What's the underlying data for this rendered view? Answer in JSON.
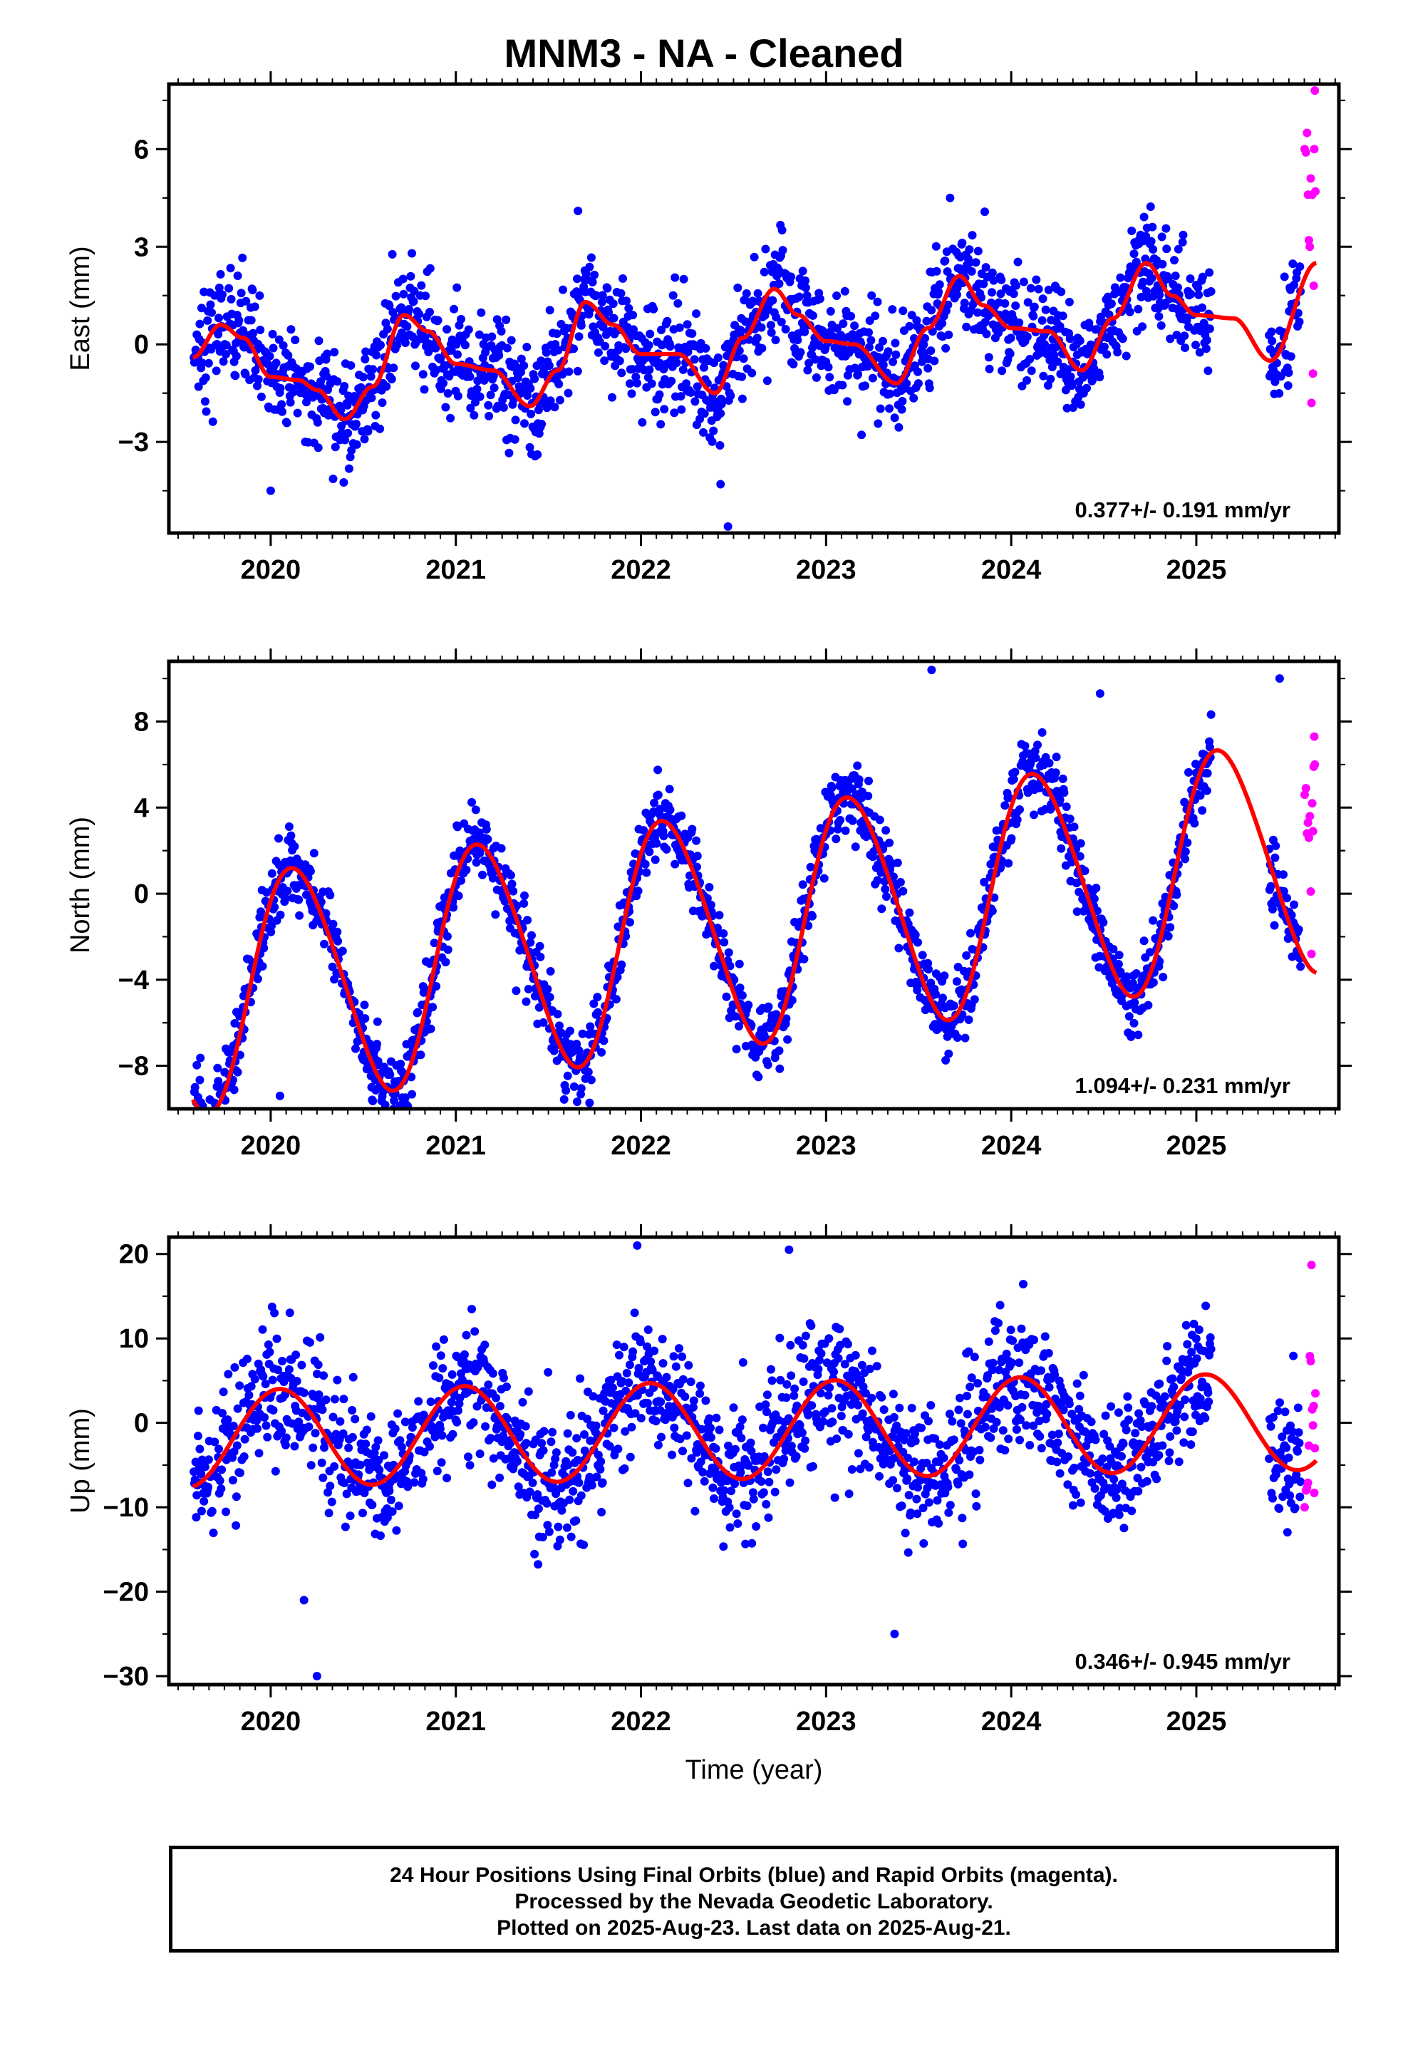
{
  "title": "MNM3  - NA - Cleaned",
  "colors": {
    "final": "#0000ff",
    "rapid": "#ff00ff",
    "model": "#ff0000",
    "axis": "#000000"
  },
  "xlabel": "Time (year)",
  "footer": {
    "line1": "24 Hour Positions Using Final Orbits (blue) and Rapid Orbits (magenta).",
    "line2": "Processed by the Nevada Geodetic Laboratory.",
    "line3": "Plotted on 2025-Aug-23. Last data on 2025-Aug-21."
  },
  "chart_data": [
    {
      "type": "scatter",
      "component": "East",
      "ylabel": "East (mm)",
      "xlim": [
        2019.45,
        2025.77
      ],
      "ylim": [
        -5.8,
        8.0
      ],
      "xticks": [
        2020,
        2021,
        2022,
        2023,
        2024,
        2025
      ],
      "yticks": [
        -3,
        0,
        3,
        6
      ],
      "rate": "0.377+/- 0.191 mm/yr",
      "model": {
        "start": 2019.58,
        "end": 2025.65,
        "offset": 0.0,
        "trend": 0.377,
        "annual_sin": 0.0,
        "annual_cos": 0.0,
        "semi_sin": 0.0,
        "semi_cos": 0.0,
        "knots": [
          [
            2019.58,
            -0.4
          ],
          [
            2019.73,
            0.6
          ],
          [
            2019.85,
            0.2
          ],
          [
            2020.0,
            -1.0
          ],
          [
            2020.15,
            -1.1
          ],
          [
            2020.25,
            -1.4
          ],
          [
            2020.4,
            -2.3
          ],
          [
            2020.55,
            -1.3
          ],
          [
            2020.72,
            0.9
          ],
          [
            2020.85,
            0.4
          ],
          [
            2021.0,
            -0.6
          ],
          [
            2021.2,
            -0.8
          ],
          [
            2021.4,
            -1.9
          ],
          [
            2021.55,
            -0.8
          ],
          [
            2021.7,
            1.3
          ],
          [
            2021.85,
            0.6
          ],
          [
            2022.0,
            -0.3
          ],
          [
            2022.2,
            -0.3
          ],
          [
            2022.4,
            -1.5
          ],
          [
            2022.55,
            0.2
          ],
          [
            2022.72,
            1.7
          ],
          [
            2022.85,
            0.9
          ],
          [
            2023.0,
            0.1
          ],
          [
            2023.15,
            0.0
          ],
          [
            2023.38,
            -1.2
          ],
          [
            2023.55,
            0.5
          ],
          [
            2023.72,
            2.1
          ],
          [
            2023.85,
            1.2
          ],
          [
            2024.0,
            0.5
          ],
          [
            2024.2,
            0.4
          ],
          [
            2024.38,
            -0.8
          ],
          [
            2024.55,
            0.8
          ],
          [
            2024.73,
            2.5
          ],
          [
            2024.87,
            1.5
          ],
          [
            2025.0,
            0.9
          ],
          [
            2025.2,
            0.8
          ],
          [
            2025.4,
            -0.5
          ],
          [
            2025.65,
            2.5
          ]
        ],
        "noise": 0.85
      },
      "final": {
        "start": 2019.585,
        "end": 2025.565,
        "step": 0.0032,
        "gaps": [
          [
            2025.08,
            2025.39
          ]
        ]
      },
      "rapid": {
        "x": [
          2025.585,
          2025.592,
          2025.598,
          2025.603,
          2025.608,
          2025.613,
          2025.618,
          2025.622,
          2025.626,
          2025.63,
          2025.634,
          2025.637,
          2025.64,
          2025.643
        ],
        "y": [
          6.0,
          5.9,
          6.5,
          4.6,
          3.2,
          3.0,
          5.1,
          -1.8,
          4.6,
          -0.9,
          1.8,
          6.0,
          7.8,
          4.7
        ]
      },
      "outliers": [
        [
          2020.0,
          -4.5
        ],
        [
          2022.47,
          -5.6
        ],
        [
          2022.43,
          -4.3
        ],
        [
          2023.67,
          4.5
        ],
        [
          2021.66,
          4.1
        ]
      ]
    },
    {
      "type": "scatter",
      "component": "North",
      "ylabel": "North (mm)",
      "xlim": [
        2019.45,
        2025.77
      ],
      "ylim": [
        -10.0,
        10.8
      ],
      "xticks": [
        2020,
        2021,
        2022,
        2023,
        2024,
        2025
      ],
      "yticks": [
        -8,
        -4,
        0,
        4,
        8
      ],
      "rate": "1.094+/- 0.231 mm/yr",
      "model": {
        "start": 2019.58,
        "end": 2025.65,
        "offset": -1.6,
        "trend": 1.094,
        "annual_sin": 4.1,
        "annual_cos": 3.5,
        "semi_sin": 0.0,
        "semi_cos": 0.5,
        "knots": [],
        "noise": 0.85
      },
      "final": {
        "start": 2019.585,
        "end": 2025.565,
        "step": 0.0032,
        "gaps": [
          [
            2025.08,
            2025.39
          ]
        ]
      },
      "rapid": {
        "x": [
          2025.585,
          2025.592,
          2025.598,
          2025.603,
          2025.608,
          2025.613,
          2025.618,
          2025.622,
          2025.626,
          2025.63,
          2025.634,
          2025.637,
          2025.64
        ],
        "y": [
          4.6,
          4.9,
          2.8,
          3.3,
          2.6,
          3.6,
          0.1,
          -2.8,
          4.2,
          2.9,
          5.9,
          7.3,
          6.0
        ]
      },
      "outliers": [
        [
          2023.57,
          10.4
        ],
        [
          2025.45,
          10.0
        ],
        [
          2020.05,
          -9.4
        ],
        [
          2024.48,
          9.3
        ]
      ]
    },
    {
      "type": "scatter",
      "component": "Up",
      "ylabel": "Up (mm)",
      "xlim": [
        2019.45,
        2025.77
      ],
      "ylim": [
        -31.0,
        22.0
      ],
      "xticks": [
        2020,
        2021,
        2022,
        2023,
        2024,
        2025
      ],
      "yticks": [
        -30,
        -20,
        -10,
        0,
        10,
        20
      ],
      "rate": "0.346+/- 0.945 mm/yr",
      "model": {
        "start": 2019.58,
        "end": 2025.65,
        "offset": -0.9,
        "trend": 0.346,
        "annual_sin": 1.7,
        "annual_cos": 5.5,
        "semi_sin": 0.0,
        "semi_cos": 0.0,
        "knots": [],
        "noise": 4.0
      },
      "final": {
        "start": 2019.585,
        "end": 2025.565,
        "step": 0.0032,
        "gaps": [
          [
            2025.08,
            2025.39
          ]
        ]
      },
      "rapid": {
        "x": [
          2025.585,
          2025.592,
          2025.598,
          2025.603,
          2025.608,
          2025.613,
          2025.618,
          2025.622,
          2025.626,
          2025.63,
          2025.634,
          2025.637,
          2025.64,
          2025.643
        ],
        "y": [
          -10.0,
          -8.0,
          -7.7,
          -7.1,
          -2.7,
          7.9,
          7.3,
          18.7,
          1.6,
          -0.3,
          2.0,
          -8.3,
          -3.0,
          3.5
        ]
      },
      "outliers": [
        [
          2020.25,
          -30.0
        ],
        [
          2023.37,
          -25.0
        ],
        [
          2021.98,
          21.0
        ],
        [
          2022.8,
          20.5
        ],
        [
          2020.18,
          -21.0
        ]
      ]
    }
  ]
}
